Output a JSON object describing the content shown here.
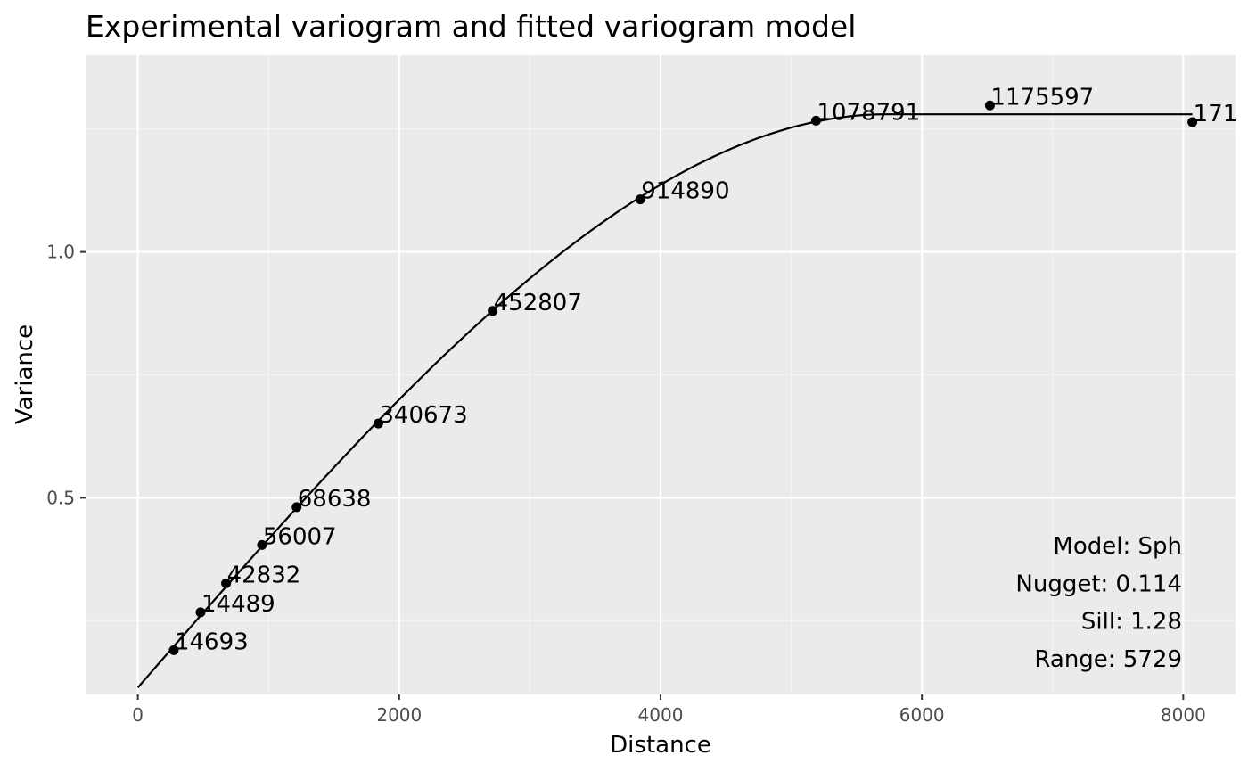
{
  "chart_data": {
    "type": "scatter",
    "title": "Experimental variogram and fitted variogram model",
    "xlabel": "Distance",
    "ylabel": "Variance",
    "xlim": [
      -400,
      8400
    ],
    "ylim": [
      0.1,
      1.4
    ],
    "x_ticks": [
      0,
      2000,
      4000,
      6000,
      8000
    ],
    "x_tick_labels": [
      "0",
      "2000",
      "4000",
      "6000",
      "8000"
    ],
    "y_ticks": [
      0.5,
      1.0
    ],
    "y_tick_labels": [
      "0.5",
      "1.0"
    ],
    "grid": true,
    "series": [
      {
        "points": [
          {
            "x": 275,
            "y": 0.19,
            "label": "14693"
          },
          {
            "x": 480,
            "y": 0.267,
            "label": "14489"
          },
          {
            "x": 675,
            "y": 0.326,
            "label": "42832"
          },
          {
            "x": 950,
            "y": 0.404,
            "label": "56007"
          },
          {
            "x": 1215,
            "y": 0.481,
            "label": "68638"
          },
          {
            "x": 1840,
            "y": 0.651,
            "label": "340673"
          },
          {
            "x": 2715,
            "y": 0.88,
            "label": "452807"
          },
          {
            "x": 3845,
            "y": 1.107,
            "label": "914890"
          },
          {
            "x": 5190,
            "y": 1.267,
            "label": "1078791"
          },
          {
            "x": 6520,
            "y": 1.298,
            "label": "1175597"
          },
          {
            "x": 8070,
            "y": 1.264,
            "label": "171"
          }
        ]
      }
    ],
    "model": {
      "type": "Sph",
      "nugget": 0.114,
      "sill": 1.28,
      "range": 5729,
      "x_max": 8070
    },
    "annotation_lines": [
      "Model: Sph",
      "Nugget: 0.114",
      "Sill: 1.28",
      "Range: 5729"
    ],
    "colors": {
      "panel_background": "#ebebeb",
      "grid_major": "#ffffff",
      "grid_minor": "#f5f5f5",
      "points": "#000000",
      "line": "#000000",
      "tick_text": "#4d4d4d"
    }
  }
}
